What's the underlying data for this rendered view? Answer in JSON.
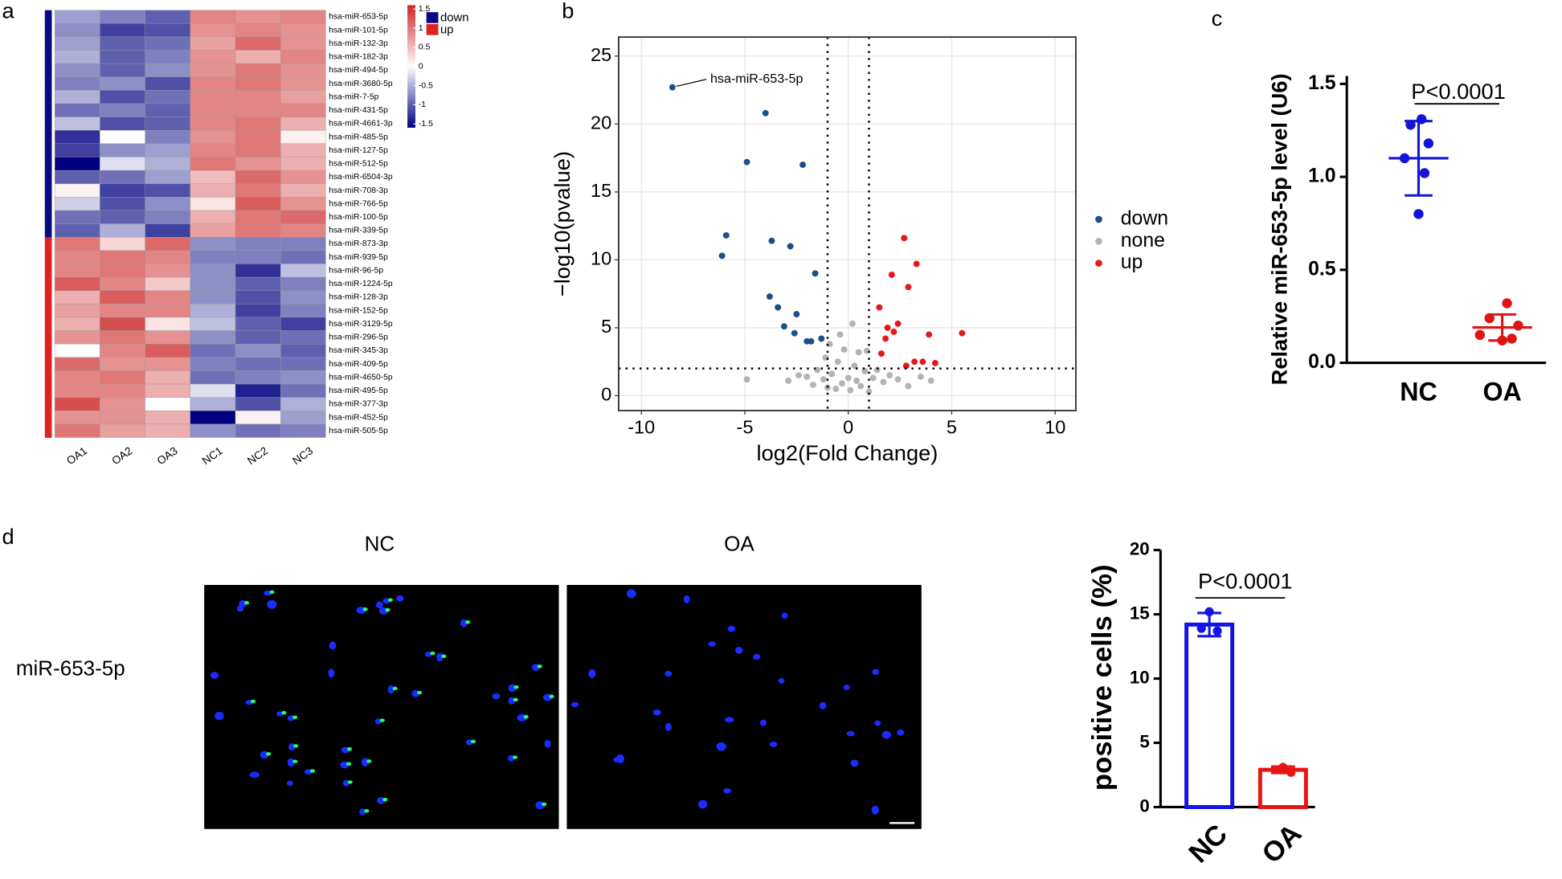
{
  "panel_labels": [
    "a",
    "b",
    "c",
    "d"
  ],
  "micrographs": {
    "row_label": "miR-653-5p",
    "columns": [
      "NC",
      "OA"
    ]
  },
  "chart_data": [
    {
      "type": "heatmap",
      "columns": [
        "OA1",
        "OA2",
        "OA3",
        "NC1",
        "NC2",
        "NC3"
      ],
      "rows": [
        "hsa-miR-653-5p",
        "hsa-miR-101-5p",
        "hsa-miR-132-3p",
        "hsa-miR-182-3p",
        "hsa-miR-494-5p",
        "hsa-miR-3680-5p",
        "hsa-miR-7-5p",
        "hsa-miR-431-5p",
        "hsa-miR-4661-3p",
        "hsa-miR-485-5p",
        "hsa-miR-127-5p",
        "hsa-miR-512-5p",
        "hsa-miR-6504-3p",
        "hsa-miR-708-3p",
        "hsa-miR-766-5p",
        "hsa-miR-100-5p",
        "hsa-miR-339-5p",
        "hsa-miR-873-3p",
        "hsa-miR-939-5p",
        "hsa-miR-96-5p",
        "hsa-miR-1224-5p",
        "hsa-miR-128-3p",
        "hsa-miR-152-5p",
        "hsa-miR-3129-5p",
        "hsa-miR-296-5p",
        "hsa-miR-345-3p",
        "hsa-miR-409-5p",
        "hsa-miR-4650-5p",
        "hsa-miR-495-5p",
        "hsa-miR-377-3p",
        "hsa-miR-452-5p",
        "hsa-miR-505-5p"
      ],
      "values": [
        [
          -0.6,
          -0.8,
          -1.0,
          0.9,
          0.8,
          0.9
        ],
        [
          -0.7,
          -1.2,
          -1.1,
          0.8,
          0.9,
          0.8
        ],
        [
          -0.6,
          -1.0,
          -0.9,
          0.7,
          1.1,
          0.8
        ],
        [
          -0.5,
          -1.0,
          -0.8,
          0.8,
          0.6,
          0.9
        ],
        [
          -0.7,
          -1.0,
          -0.7,
          0.8,
          1.0,
          0.8
        ],
        [
          -0.8,
          -0.7,
          -1.1,
          0.9,
          1.0,
          0.8
        ],
        [
          -0.5,
          -1.1,
          -0.9,
          0.9,
          0.9,
          0.7
        ],
        [
          -0.9,
          -0.8,
          -1.0,
          0.9,
          0.9,
          0.9
        ],
        [
          -0.4,
          -1.1,
          -1.0,
          0.9,
          1.0,
          0.6
        ],
        [
          -1.3,
          0.0,
          -0.8,
          0.8,
          1.0,
          0.1
        ],
        [
          -1.2,
          -0.7,
          -0.6,
          0.9,
          1.0,
          0.6
        ],
        [
          -1.6,
          -0.2,
          -0.5,
          1.0,
          0.8,
          0.6
        ],
        [
          -1.0,
          -0.9,
          -0.6,
          0.5,
          1.1,
          0.8
        ],
        [
          0.1,
          -1.2,
          -1.1,
          0.6,
          1.0,
          0.6
        ],
        [
          -0.3,
          -1.1,
          -0.7,
          0.2,
          1.2,
          0.8
        ],
        [
          -0.9,
          -1.0,
          -0.8,
          0.6,
          1.0,
          1.1
        ],
        [
          -1.0,
          -0.5,
          -1.2,
          0.7,
          1.0,
          0.9
        ],
        [
          1.0,
          0.3,
          1.1,
          -0.7,
          -0.8,
          -0.8
        ],
        [
          0.9,
          1.0,
          0.9,
          -0.8,
          -0.8,
          -0.9
        ],
        [
          0.9,
          1.0,
          0.8,
          -0.7,
          -1.3,
          -0.4
        ],
        [
          1.2,
          0.9,
          0.4,
          -0.7,
          -1.0,
          -0.8
        ],
        [
          0.6,
          1.2,
          0.9,
          -0.7,
          -1.1,
          -0.7
        ],
        [
          0.7,
          0.9,
          0.9,
          -0.5,
          -1.2,
          -0.8
        ],
        [
          0.6,
          1.3,
          0.2,
          -0.4,
          -1.0,
          -1.2
        ],
        [
          0.8,
          1.0,
          0.8,
          -0.7,
          -1.0,
          -0.9
        ],
        [
          0.0,
          0.9,
          1.2,
          -0.9,
          -0.7,
          -1.0
        ],
        [
          1.1,
          0.8,
          0.8,
          -0.8,
          -0.9,
          -0.9
        ],
        [
          0.9,
          1.0,
          0.6,
          -0.9,
          -0.8,
          -0.7
        ],
        [
          0.9,
          0.9,
          0.6,
          -0.2,
          -1.4,
          -0.9
        ],
        [
          1.3,
          0.8,
          0.0,
          -0.5,
          -1.1,
          -0.5
        ],
        [
          0.8,
          0.8,
          0.6,
          -1.6,
          0.1,
          -0.6
        ],
        [
          1.0,
          0.7,
          0.6,
          -0.7,
          -0.9,
          -0.8
        ]
      ],
      "row_group": [
        "down",
        "down",
        "down",
        "down",
        "down",
        "down",
        "down",
        "down",
        "down",
        "down",
        "down",
        "down",
        "down",
        "down",
        "down",
        "down",
        "down",
        "up",
        "up",
        "up",
        "up",
        "up",
        "up",
        "up",
        "up",
        "up",
        "up",
        "up",
        "up",
        "up",
        "up",
        "up"
      ],
      "groups": [
        {
          "name": "down",
          "color": "#0a0a80"
        },
        {
          "name": "up",
          "color": "#dd2222"
        }
      ],
      "colors": [
        "#000080",
        "#ffffff",
        "#cd2626"
      ],
      "zlim": [
        -1.6,
        1.6
      ],
      "zticks": [
        1.5,
        1,
        0.5,
        0,
        -0.5,
        -1,
        -1.5
      ]
    },
    {
      "type": "volcano",
      "xlabel": "log2(Fold Change)",
      "ylabel": "−log10(pvalue)",
      "xlim": [
        -11.1,
        11
      ],
      "ylim": [
        -1.1,
        26.4
      ],
      "xticks": [
        -10,
        -5,
        0,
        5,
        10
      ],
      "yticks": [
        0,
        5,
        10,
        15,
        20,
        25
      ],
      "vlines": [
        -1,
        1
      ],
      "hline": 2,
      "grid": true,
      "annotation": {
        "text": "hsa-miR-653-5p",
        "x": -8.5,
        "y": 22.7
      },
      "series": [
        {
          "name": "down",
          "color": "#1b4f85",
          "x": [
            -8.5,
            -4,
            -4.9,
            -2.2,
            -5.9,
            -3.7,
            -2.8,
            -6.1,
            -1.6,
            -3.8,
            -3.4,
            -2.5,
            -3.1,
            -2.6,
            -2,
            -1.8,
            -1.3
          ],
          "y": [
            22.7,
            20.8,
            17.2,
            17,
            11.8,
            11.4,
            11,
            10.3,
            9,
            7.3,
            6.5,
            6,
            5.1,
            4.6,
            4,
            4,
            4.2
          ]
        },
        {
          "name": "none",
          "color": "#b3b3b3",
          "x": [
            -4.9,
            -2.9,
            -2.4,
            -2,
            -1.7,
            -1.5,
            -1.2,
            -1,
            -0.8,
            -0.6,
            -0.5,
            -0.3,
            -0.2,
            0,
            0.1,
            0.3,
            0.4,
            0.6,
            0.8,
            1,
            1.2,
            1.4,
            1.7,
            2,
            2.4,
            2.9,
            3.5,
            4,
            -0.4,
            0.2,
            0.5,
            -0.9,
            0.9,
            -1.1
          ],
          "y": [
            1.2,
            1.1,
            1.5,
            1.4,
            0.8,
            1.9,
            1.2,
            0.6,
            1.6,
            0.5,
            2.5,
            0.9,
            3.4,
            1.3,
            0.4,
            2.2,
            1.1,
            0.7,
            1.8,
            0.3,
            1.3,
            1.9,
            1,
            1.5,
            1.2,
            0.7,
            1.4,
            1.1,
            4.5,
            5.3,
            3.2,
            3.8,
            3.3,
            2.8
          ]
        },
        {
          "name": "up",
          "color": "#e31a1c",
          "x": [
            2.7,
            3.3,
            2.1,
            2.9,
            1.5,
            2.4,
            1.9,
            2.2,
            3.9,
            5.5,
            1.8,
            1.6,
            2.8,
            3.2,
            3.6,
            4.2
          ],
          "y": [
            11.6,
            9.7,
            8.9,
            8,
            6.5,
            5.3,
            5,
            4.7,
            4.5,
            4.6,
            4.2,
            3.1,
            2.2,
            2.5,
            2.5,
            2.4
          ]
        }
      ]
    },
    {
      "type": "dot_plot",
      "ylabel": "Relative miR-653-5p level (U6)",
      "categories": [
        "NC",
        "OA"
      ],
      "colors": [
        "#1414d9",
        "#e01414"
      ],
      "points": [
        [
          1.31,
          1.28,
          1.18,
          1.1,
          1.02,
          0.8
        ],
        [
          0.32,
          0.24,
          0.2,
          0.15,
          0.13,
          0.12
        ]
      ],
      "means": [
        1.1,
        0.19
      ],
      "sds": [
        0.2,
        0.07
      ],
      "ylim": [
        0,
        1.5
      ],
      "yticks": [
        {
          "value": 0,
          "label": "0.0"
        },
        0.5,
        {
          "value": 1,
          "label": "1.0"
        },
        1.5
      ],
      "annotation": "P<0.0001"
    },
    {
      "type": "bar",
      "ylabel": "positive cells (%)",
      "categories": [
        "NC",
        "OA"
      ],
      "colors": [
        "#1414e6",
        "#e61414"
      ],
      "values": [
        14.2,
        2.9
      ],
      "errors": [
        0.9,
        0.25
      ],
      "points": [
        [
          15.2,
          13.9,
          13.7
        ],
        [
          3.1,
          2.9,
          2.7
        ]
      ],
      "ylim": [
        0,
        20
      ],
      "yticks": [
        0,
        5,
        10,
        15,
        20
      ],
      "annotation": "P<0.0001"
    }
  ]
}
